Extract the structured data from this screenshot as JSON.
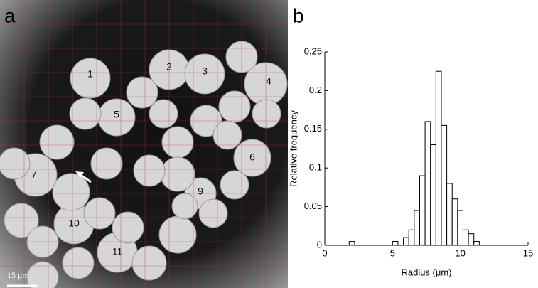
{
  "micrograph": {
    "panel_label": "a",
    "scale_bar": "15 μm",
    "labels": [
      "1",
      "2",
      "3",
      "4",
      "5",
      "6",
      "7",
      "9",
      "10",
      "11"
    ]
  },
  "chart_data": {
    "type": "histogram",
    "panel_label": "b",
    "xlabel": "Radius (μm)",
    "ylabel": "Relative frequency",
    "bins": [
      1.8,
      2.2,
      2.6,
      3.0,
      3.4,
      3.8,
      4.2,
      4.6,
      5.0,
      5.4,
      5.8,
      6.2,
      6.6,
      7.0,
      7.4,
      7.8,
      8.2,
      8.6,
      9.0,
      9.4,
      9.8,
      10.2,
      10.6,
      11.0,
      11.4
    ],
    "values": [
      0.005,
      0,
      0,
      0,
      0,
      0,
      0,
      0,
      0.005,
      0,
      0.01,
      0.02,
      0.045,
      0.09,
      0.16,
      0.13,
      0.225,
      0.155,
      0.08,
      0.06,
      0.045,
      0.02,
      0.015,
      0.005
    ],
    "color": "#ffffff",
    "xlim": [
      0,
      15
    ],
    "xticks": [
      0,
      5,
      10,
      15
    ],
    "ylim": [
      0,
      0.25
    ],
    "yticks": [
      0,
      0.05,
      0.1,
      0.15,
      0.2,
      0.25
    ]
  }
}
